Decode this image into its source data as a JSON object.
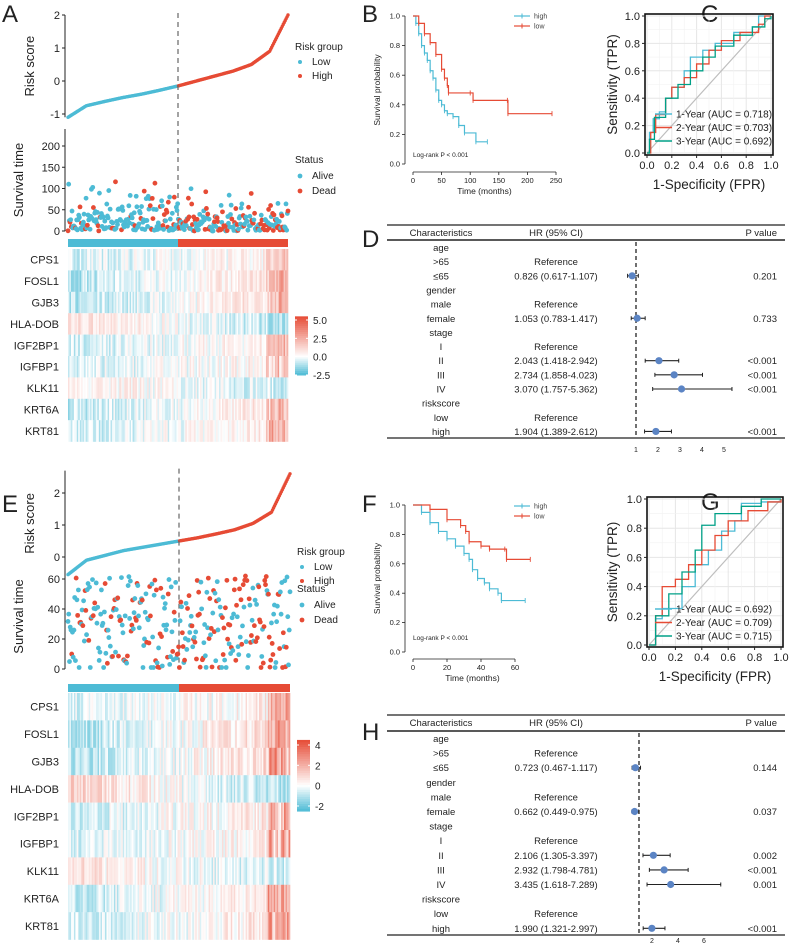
{
  "panel_labels": [
    "A",
    "B",
    "C",
    "D",
    "E",
    "F",
    "G",
    "H"
  ],
  "colors": {
    "low": "#4DBBD5",
    "high": "#E64B35",
    "roc_1y": "#4DBBD5",
    "roc_2y": "#E64B35",
    "roc_3y": "#00A087",
    "forest_point": "#5B84C4",
    "diagonal": "#BEBEBE"
  },
  "chart_data": [
    {
      "panel": "A",
      "type": "scatter",
      "risk_score": {
        "ylabel": "Risk score",
        "yticks": [
          -1,
          0,
          1,
          2
        ],
        "ylim": [
          -1.1,
          2.0
        ],
        "sorted_values": [
          -1.1,
          -0.75,
          -0.62,
          -0.5,
          -0.4,
          -0.28,
          -0.15,
          0.0,
          0.15,
          0.3,
          0.5,
          0.9,
          2.0
        ],
        "legend_title": "Risk group",
        "legend": [
          "Low",
          "High"
        ]
      },
      "survival": {
        "ylabel": "Survival time",
        "yticks": [
          0,
          50,
          100,
          150,
          200
        ],
        "ylim": [
          0,
          240
        ],
        "legend_title": "Status",
        "legend": [
          "Alive",
          "Dead"
        ]
      },
      "heatmap": {
        "genes": [
          "CPS1",
          "FOSL1",
          "GJB3",
          "HLA-DOB",
          "IGF2BP1",
          "IGFBP1",
          "KLK11",
          "KRT6A",
          "KRT81"
        ],
        "colorbar_ticks": [
          "5.0",
          "2.5",
          "0.0",
          "-2.5"
        ],
        "colorbar_values": [
          5,
          2.5,
          0,
          -2.5
        ],
        "color_range": [
          -2.5,
          5.5
        ]
      }
    },
    {
      "panel": "B",
      "type": "line",
      "ylabel": "Survival probability",
      "xlabel": "Time (months)",
      "xticks": [
        0,
        50,
        100,
        150,
        200,
        250
      ],
      "yticks": [
        "0.0",
        "0.2",
        "0.4",
        "0.6",
        "0.8",
        "1.0"
      ],
      "xlim": [
        0,
        250
      ],
      "ylim": [
        0,
        1
      ],
      "annotation": "Log-rank P < 0.001",
      "series": [
        {
          "name": "high",
          "points": [
            [
              0,
              1
            ],
            [
              5,
              0.95
            ],
            [
              10,
              0.88
            ],
            [
              15,
              0.8
            ],
            [
              20,
              0.75
            ],
            [
              25,
              0.7
            ],
            [
              30,
              0.63
            ],
            [
              35,
              0.58
            ],
            [
              40,
              0.5
            ],
            [
              45,
              0.43
            ],
            [
              50,
              0.4
            ],
            [
              55,
              0.36
            ],
            [
              60,
              0.34
            ],
            [
              70,
              0.32
            ],
            [
              80,
              0.26
            ],
            [
              90,
              0.21
            ],
            [
              110,
              0.15
            ],
            [
              130,
              0.15
            ]
          ]
        },
        {
          "name": "low",
          "points": [
            [
              0,
              1
            ],
            [
              10,
              0.95
            ],
            [
              20,
              0.88
            ],
            [
              30,
              0.82
            ],
            [
              40,
              0.74
            ],
            [
              50,
              0.64
            ],
            [
              55,
              0.58
            ],
            [
              60,
              0.53
            ],
            [
              62,
              0.48
            ],
            [
              100,
              0.48
            ],
            [
              105,
              0.43
            ],
            [
              165,
              0.43
            ],
            [
              166,
              0.34
            ],
            [
              243,
              0.34
            ]
          ]
        }
      ]
    },
    {
      "panel": "C",
      "type": "line",
      "xlabel": "1-Specificity (FPR)",
      "ylabel": "Sensitivity (TPR)",
      "ticks": [
        "0.0",
        "0.2",
        "0.4",
        "0.6",
        "0.8",
        "1.0"
      ],
      "xlim": [
        0,
        1
      ],
      "ylim": [
        0,
        1
      ],
      "grid": true,
      "legend_position": "bottom-right",
      "series": [
        {
          "name": "1-Year (AUC = 0.718)",
          "points": [
            [
              0,
              0
            ],
            [
              0.02,
              0.15
            ],
            [
              0.05,
              0.25
            ],
            [
              0.1,
              0.3
            ],
            [
              0.15,
              0.4
            ],
            [
              0.2,
              0.48
            ],
            [
              0.3,
              0.6
            ],
            [
              0.35,
              0.7
            ],
            [
              0.45,
              0.75
            ],
            [
              0.55,
              0.8
            ],
            [
              0.7,
              0.88
            ],
            [
              0.85,
              0.92
            ],
            [
              0.9,
              1
            ],
            [
              1,
              1
            ]
          ]
        },
        {
          "name": "2-Year (AUC = 0.703)",
          "points": [
            [
              0,
              0
            ],
            [
              0.03,
              0.15
            ],
            [
              0.07,
              0.28
            ],
            [
              0.15,
              0.4
            ],
            [
              0.2,
              0.48
            ],
            [
              0.3,
              0.55
            ],
            [
              0.4,
              0.65
            ],
            [
              0.5,
              0.75
            ],
            [
              0.6,
              0.82
            ],
            [
              0.75,
              0.88
            ],
            [
              0.9,
              0.94
            ],
            [
              0.95,
              1
            ],
            [
              1,
              1
            ]
          ]
        },
        {
          "name": "3-Year (AUC = 0.692)",
          "points": [
            [
              0,
              0
            ],
            [
              0.02,
              0.1
            ],
            [
              0.06,
              0.26
            ],
            [
              0.15,
              0.4
            ],
            [
              0.25,
              0.5
            ],
            [
              0.35,
              0.6
            ],
            [
              0.45,
              0.7
            ],
            [
              0.55,
              0.78
            ],
            [
              0.7,
              0.86
            ],
            [
              0.85,
              0.92
            ],
            [
              0.95,
              0.98
            ],
            [
              1,
              1
            ]
          ]
        }
      ]
    },
    {
      "panel": "D",
      "type": "table",
      "headers": [
        "Characteristics",
        "HR (95% CI)",
        "P value"
      ],
      "xticks": [
        1,
        2,
        3,
        4,
        5
      ],
      "reference_line": 1,
      "rows": [
        {
          "label": "age",
          "hr_text": "",
          "p": ""
        },
        {
          "label": ">65",
          "hr_text": "Reference",
          "p": ""
        },
        {
          "label": "≤65",
          "hr_text": "0.826 (0.617-1.107)",
          "p": "0.201",
          "hr": 0.826,
          "lo": 0.617,
          "hi": 1.107
        },
        {
          "label": "gender",
          "hr_text": "",
          "p": ""
        },
        {
          "label": "male",
          "hr_text": "Reference",
          "p": ""
        },
        {
          "label": "female",
          "hr_text": "1.053 (0.783-1.417)",
          "p": "0.733",
          "hr": 1.053,
          "lo": 0.783,
          "hi": 1.417
        },
        {
          "label": "stage",
          "hr_text": "",
          "p": ""
        },
        {
          "label": "I",
          "hr_text": "Reference",
          "p": ""
        },
        {
          "label": "II",
          "hr_text": "2.043 (1.418-2.942)",
          "p": "<0.001",
          "hr": 2.043,
          "lo": 1.418,
          "hi": 2.942
        },
        {
          "label": "III",
          "hr_text": "2.734 (1.858-4.023)",
          "p": "<0.001",
          "hr": 2.734,
          "lo": 1.858,
          "hi": 4.023
        },
        {
          "label": "IV",
          "hr_text": "3.070 (1.757-5.362)",
          "p": "<0.001",
          "hr": 3.07,
          "lo": 1.757,
          "hi": 5.362
        },
        {
          "label": "riskscore",
          "hr_text": "",
          "p": ""
        },
        {
          "label": "low",
          "hr_text": "Reference",
          "p": ""
        },
        {
          "label": "high",
          "hr_text": "1.904 (1.389-2.612)",
          "p": "<0.001",
          "hr": 1.904,
          "lo": 1.389,
          "hi": 2.612
        }
      ]
    },
    {
      "panel": "E",
      "type": "scatter",
      "risk_score": {
        "ylabel": "Risk score",
        "yticks": [
          0,
          1,
          2
        ],
        "ylim": [
          -0.6,
          2.7
        ],
        "sorted_values": [
          -0.55,
          -0.1,
          0.05,
          0.2,
          0.3,
          0.4,
          0.5,
          0.6,
          0.72,
          0.85,
          1.05,
          1.4,
          2.6
        ],
        "legend_title": "Risk group",
        "legend": [
          "Low",
          "High"
        ]
      },
      "survival": {
        "ylabel": "Survival time",
        "yticks": [
          0,
          20,
          40,
          60
        ],
        "ylim": [
          0,
          70
        ],
        "legend_title": "Status",
        "legend": [
          "Alive",
          "Dead"
        ]
      },
      "heatmap": {
        "genes": [
          "CPS1",
          "FOSL1",
          "GJB3",
          "HLA-DOB",
          "IGF2BP1",
          "IGFBP1",
          "KLK11",
          "KRT6A",
          "KRT81"
        ],
        "colorbar_ticks": [
          "4",
          "2",
          "0",
          "-2"
        ],
        "colorbar_values": [
          4,
          2,
          0,
          -2
        ],
        "color_range": [
          -2.5,
          4.5
        ]
      }
    },
    {
      "panel": "F",
      "type": "line",
      "ylabel": "Survival probability",
      "xlabel": "Time (months)",
      "xticks": [
        0,
        20,
        40,
        60
      ],
      "yticks": [
        "0.0",
        "0.2",
        "0.4",
        "0.6",
        "0.8",
        "1.0"
      ],
      "xlim": [
        0,
        70
      ],
      "ylim": [
        0,
        1
      ],
      "annotation": "Log-rank P < 0.001",
      "series": [
        {
          "name": "high",
          "points": [
            [
              0,
              1
            ],
            [
              5,
              0.95
            ],
            [
              10,
              0.88
            ],
            [
              15,
              0.82
            ],
            [
              20,
              0.77
            ],
            [
              25,
              0.72
            ],
            [
              30,
              0.67
            ],
            [
              33,
              0.63
            ],
            [
              35,
              0.56
            ],
            [
              38,
              0.5
            ],
            [
              42,
              0.47
            ],
            [
              45,
              0.43
            ],
            [
              50,
              0.4
            ],
            [
              52,
              0.35
            ],
            [
              66,
              0.35
            ]
          ]
        },
        {
          "name": "low",
          "points": [
            [
              0,
              1
            ],
            [
              10,
              0.97
            ],
            [
              20,
              0.9
            ],
            [
              28,
              0.86
            ],
            [
              31,
              0.82
            ],
            [
              33,
              0.75
            ],
            [
              40,
              0.72
            ],
            [
              45,
              0.7
            ],
            [
              54,
              0.7
            ],
            [
              55,
              0.63
            ],
            [
              69,
              0.63
            ]
          ]
        }
      ]
    },
    {
      "panel": "G",
      "type": "line",
      "xlabel": "1-Specificity (FPR)",
      "ylabel": "Sensitivity (TPR)",
      "ticks": [
        "0.0",
        "0.2",
        "0.4",
        "0.6",
        "0.8",
        "1.0"
      ],
      "xlim": [
        0,
        1
      ],
      "ylim": [
        0,
        1
      ],
      "grid": true,
      "legend_position": "bottom-right",
      "series": [
        {
          "name": "1-Year (AUC = 0.692)",
          "points": [
            [
              0,
              0
            ],
            [
              0.05,
              0.18
            ],
            [
              0.1,
              0.25
            ],
            [
              0.2,
              0.25
            ],
            [
              0.25,
              0.4
            ],
            [
              0.35,
              0.55
            ],
            [
              0.45,
              0.65
            ],
            [
              0.55,
              0.78
            ],
            [
              0.65,
              0.85
            ],
            [
              0.7,
              0.97
            ],
            [
              0.85,
              0.98
            ],
            [
              1,
              1
            ]
          ]
        },
        {
          "name": "2-Year (AUC = 0.709)",
          "points": [
            [
              0,
              0
            ],
            [
              0.05,
              0.2
            ],
            [
              0.1,
              0.4
            ],
            [
              0.2,
              0.45
            ],
            [
              0.3,
              0.55
            ],
            [
              0.4,
              0.65
            ],
            [
              0.5,
              0.75
            ],
            [
              0.6,
              0.85
            ],
            [
              0.75,
              0.92
            ],
            [
              0.9,
              0.98
            ],
            [
              1,
              1
            ]
          ]
        },
        {
          "name": "3-Year (AUC = 0.715)",
          "points": [
            [
              0,
              0
            ],
            [
              0.05,
              0.2
            ],
            [
              0.15,
              0.35
            ],
            [
              0.25,
              0.5
            ],
            [
              0.35,
              0.65
            ],
            [
              0.4,
              0.82
            ],
            [
              0.5,
              0.9
            ],
            [
              0.6,
              0.9
            ],
            [
              0.7,
              0.95
            ],
            [
              0.85,
              1
            ],
            [
              1,
              1
            ]
          ]
        }
      ]
    },
    {
      "panel": "H",
      "type": "table",
      "headers": [
        "Characteristics",
        "HR (95% CI)",
        "P value"
      ],
      "xticks": [
        2,
        4,
        6
      ],
      "reference_line": 1,
      "rows": [
        {
          "label": "age",
          "hr_text": "",
          "p": ""
        },
        {
          "label": ">65",
          "hr_text": "Reference",
          "p": ""
        },
        {
          "label": "≤65",
          "hr_text": "0.723 (0.467-1.117)",
          "p": "0.144",
          "hr": 0.723,
          "lo": 0.467,
          "hi": 1.117
        },
        {
          "label": "gender",
          "hr_text": "",
          "p": ""
        },
        {
          "label": "male",
          "hr_text": "Reference",
          "p": ""
        },
        {
          "label": "female",
          "hr_text": "0.662 (0.449-0.975)",
          "p": "0.037",
          "hr": 0.662,
          "lo": 0.449,
          "hi": 0.975
        },
        {
          "label": "stage",
          "hr_text": "",
          "p": ""
        },
        {
          "label": "I",
          "hr_text": "Reference",
          "p": ""
        },
        {
          "label": "II",
          "hr_text": "2.106 (1.305-3.397)",
          "p": "0.002",
          "hr": 2.106,
          "lo": 1.305,
          "hi": 3.397
        },
        {
          "label": "III",
          "hr_text": "2.932 (1.798-4.781)",
          "p": "<0.001",
          "hr": 2.932,
          "lo": 1.798,
          "hi": 4.781
        },
        {
          "label": "IV",
          "hr_text": "3.435 (1.618-7.289)",
          "p": "0.001",
          "hr": 3.435,
          "lo": 1.618,
          "hi": 7.289
        },
        {
          "label": "riskscore",
          "hr_text": "",
          "p": ""
        },
        {
          "label": "low",
          "hr_text": "Reference",
          "p": ""
        },
        {
          "label": "high",
          "hr_text": "1.990 (1.321-2.997)",
          "p": "<0.001",
          "hr": 1.99,
          "lo": 1.321,
          "hi": 2.997
        }
      ]
    }
  ]
}
